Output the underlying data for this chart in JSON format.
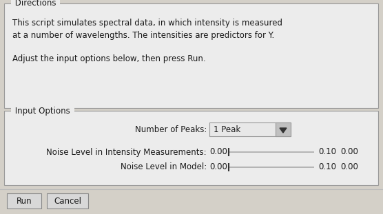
{
  "bg_color": "#d4d0c8",
  "panel_bg": "#ececec",
  "border_color": "#999999",
  "text_color": "#1a1a1a",
  "directions_title": "Directions",
  "directions_text_line1": "This script simulates spectral data, in which intensity is measured",
  "directions_text_line2": "at a number of wavelengths. The intensities are predictors for Y.",
  "directions_text_line3": "Adjust the input options below, then press Run.",
  "input_options_title": "Input Options",
  "peaks_label": "Number of Peaks:",
  "peaks_value": "1 Peak",
  "noise_intensity_label": "Noise Level in Intensity Measurements:",
  "noise_intensity_val_left": "0.00",
  "noise_intensity_val_mid": "0.10",
  "noise_intensity_val_right": "0.00",
  "noise_model_label": "Noise Level in Model:",
  "noise_model_val_left": "0.00",
  "noise_model_val_mid": "0.10",
  "noise_model_val_right": "0.00",
  "btn_run": "Run",
  "btn_cancel": "Cancel",
  "figsize": [
    5.56,
    3.11
  ],
  "dpi": 100,
  "font_size": 8.5
}
